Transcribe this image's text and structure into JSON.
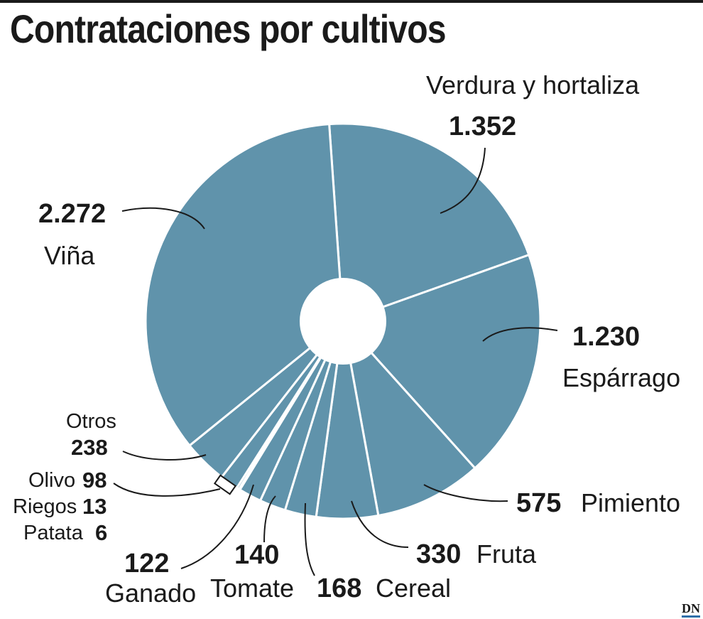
{
  "title": "Contrataciones por cultivos",
  "logo": "DN",
  "colors": {
    "slice": "#6093ab",
    "separator": "#ffffff",
    "text": "#1a1a1a"
  },
  "chart_data": {
    "type": "pie",
    "title": "Contrataciones por cultivos",
    "donut": true,
    "slices": [
      {
        "label": "Verdura y hortaliza",
        "value": 1352,
        "value_label": "1.352"
      },
      {
        "label": "Espárrago",
        "value": 1230,
        "value_label": "1.230"
      },
      {
        "label": "Pimiento",
        "value": 575,
        "value_label": "575"
      },
      {
        "label": "Fruta",
        "value": 330,
        "value_label": "330"
      },
      {
        "label": "Cereal",
        "value": 168,
        "value_label": "168"
      },
      {
        "label": "Tomate",
        "value": 140,
        "value_label": "140"
      },
      {
        "label": "Ganado",
        "value": 122,
        "value_label": "122"
      },
      {
        "label": "Patata",
        "value": 6,
        "value_label": "6"
      },
      {
        "label": "Riegos",
        "value": 13,
        "value_label": "13"
      },
      {
        "label": "Olivo",
        "value": 98,
        "value_label": "98"
      },
      {
        "label": "Otros",
        "value": 238,
        "value_label": "238"
      },
      {
        "label": "Viña",
        "value": 2272,
        "value_label": "2.272"
      }
    ]
  }
}
